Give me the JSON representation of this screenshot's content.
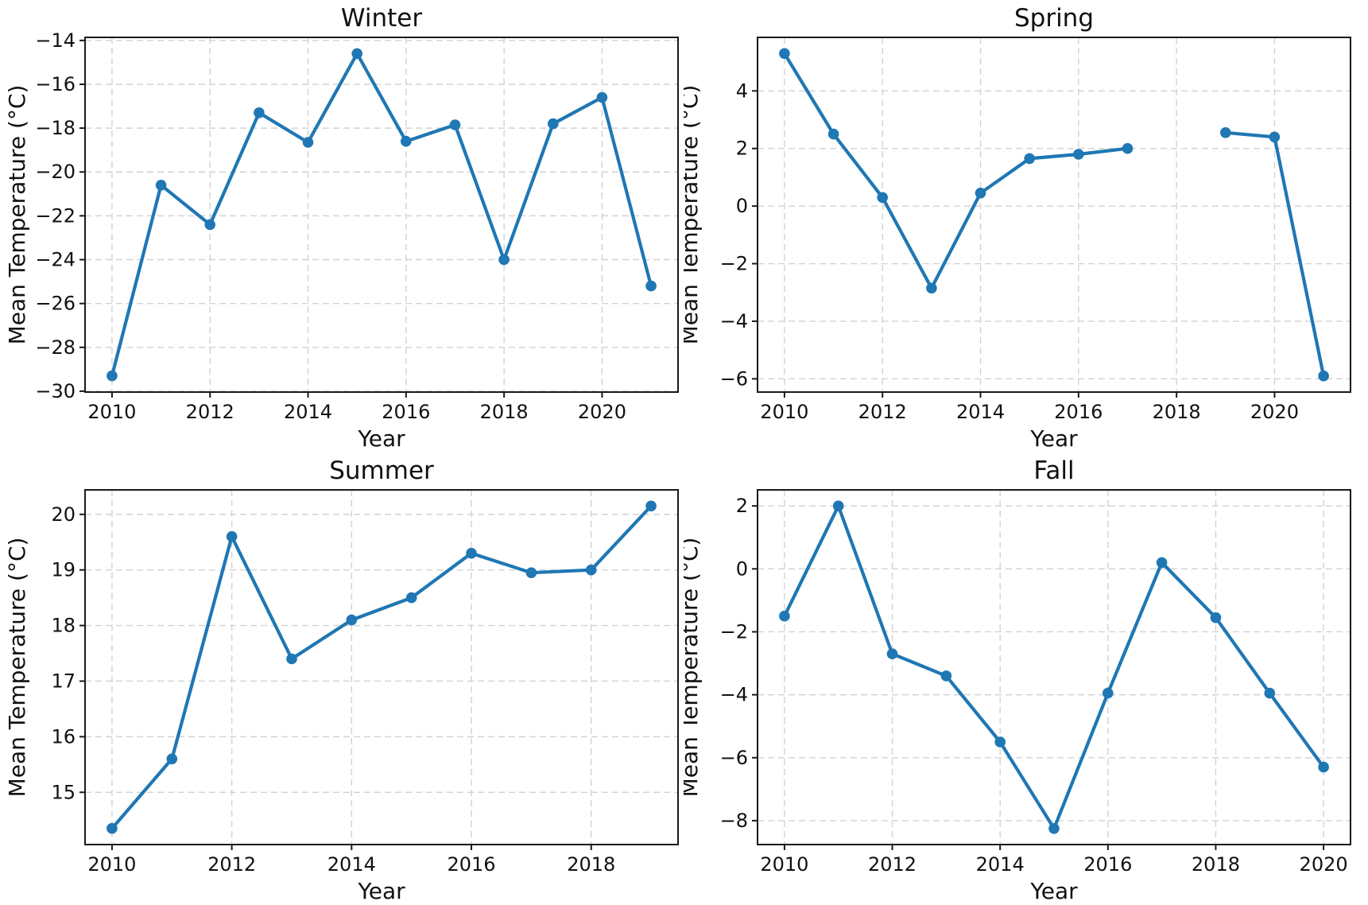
{
  "figure": {
    "background": "#ffffff",
    "grid_rows": 2,
    "grid_cols": 2
  },
  "chart_data": [
    {
      "type": "line",
      "title": "Winter",
      "xlabel": "Year",
      "ylabel": "Mean Temperature (°C)",
      "x": [
        2010,
        2011,
        2012,
        2013,
        2014,
        2015,
        2016,
        2017,
        2018,
        2019,
        2020,
        2021
      ],
      "y": [
        -29.3,
        -20.6,
        -22.4,
        -17.3,
        -18.65,
        -14.6,
        -18.6,
        -17.85,
        -24.0,
        -17.8,
        -16.6,
        -25.2
      ],
      "xticks": [
        2010,
        2012,
        2014,
        2016,
        2018,
        2020
      ],
      "yticks": [
        -30,
        -28,
        -26,
        -24,
        -22,
        -20,
        -18,
        -16,
        -14
      ],
      "xlim": [
        2009.45,
        2021.55
      ],
      "ylim": [
        -30.04,
        -13.86
      ],
      "line_color": "#1f77b4",
      "marker": "circle",
      "grid": true,
      "grid_style": "dashed",
      "legend": "none"
    },
    {
      "type": "line",
      "title": "Spring",
      "xlabel": "Year",
      "ylabel": "Mean Temperature (°C)",
      "x": [
        2010,
        2011,
        2012,
        2013,
        2014,
        2015,
        2016,
        2017,
        2018,
        2019,
        2020,
        2021
      ],
      "y": [
        5.3,
        2.5,
        0.3,
        -2.85,
        0.45,
        1.65,
        1.8,
        2.0,
        null,
        2.55,
        2.4,
        -5.9
      ],
      "xticks": [
        2010,
        2012,
        2014,
        2016,
        2018,
        2020
      ],
      "yticks": [
        -6,
        -4,
        -2,
        0,
        2,
        4
      ],
      "xlim": [
        2009.45,
        2021.55
      ],
      "ylim": [
        -6.46,
        5.86
      ],
      "line_color": "#1f77b4",
      "marker": "circle",
      "grid": true,
      "grid_style": "dashed",
      "legend": "none"
    },
    {
      "type": "line",
      "title": "Summer",
      "xlabel": "Year",
      "ylabel": "Mean Temperature (°C)",
      "x": [
        2010,
        2011,
        2012,
        2013,
        2014,
        2015,
        2016,
        2017,
        2018,
        2019
      ],
      "y": [
        14.35,
        15.6,
        19.6,
        17.4,
        18.1,
        18.5,
        19.3,
        18.95,
        19.0,
        20.15
      ],
      "xticks": [
        2010,
        2012,
        2014,
        2016,
        2018
      ],
      "yticks": [
        15,
        16,
        17,
        18,
        19,
        20
      ],
      "xlim": [
        2009.55,
        2019.45
      ],
      "ylim": [
        14.06,
        20.44
      ],
      "line_color": "#1f77b4",
      "marker": "circle",
      "grid": true,
      "grid_style": "dashed",
      "legend": "none"
    },
    {
      "type": "line",
      "title": "Fall",
      "xlabel": "Year",
      "ylabel": "Mean Temperature (°C)",
      "x": [
        2010,
        2011,
        2012,
        2013,
        2014,
        2015,
        2016,
        2017,
        2018,
        2019,
        2020
      ],
      "y": [
        -1.5,
        2.0,
        -2.7,
        -3.4,
        -5.5,
        -8.25,
        -3.95,
        0.2,
        -1.55,
        -3.95,
        -6.3
      ],
      "xticks": [
        2010,
        2012,
        2014,
        2016,
        2018,
        2020
      ],
      "yticks": [
        -8,
        -6,
        -4,
        -2,
        0,
        2
      ],
      "xlim": [
        2009.5,
        2020.5
      ],
      "ylim": [
        -8.76,
        2.51
      ],
      "line_color": "#1f77b4",
      "marker": "circle",
      "grid": true,
      "grid_style": "dashed",
      "legend": "none"
    }
  ]
}
